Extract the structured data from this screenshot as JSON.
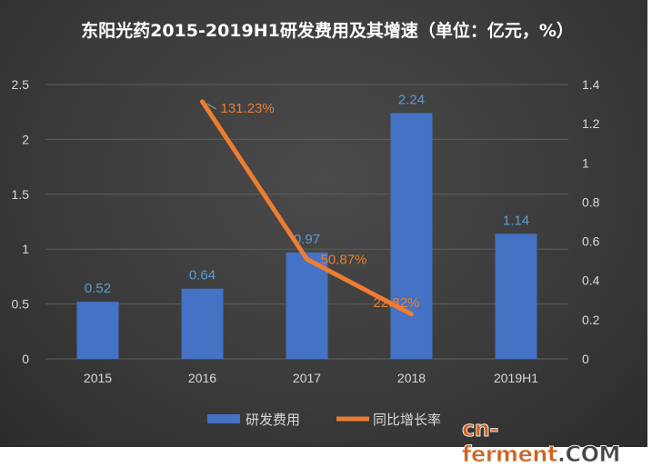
{
  "chart_data": {
    "type": "bar+line",
    "title": "东阳光药2015-2019H1研发费用及其增速（单位：亿元，%）",
    "categories": [
      "2015",
      "2016",
      "2017",
      "2018",
      "2019H1"
    ],
    "series": [
      {
        "name": "研发费用",
        "type": "bar",
        "axis": "left",
        "values": [
          0.52,
          0.64,
          0.97,
          2.24,
          1.14
        ],
        "labels": [
          "0.52",
          "0.64",
          "0.97",
          "2.24",
          "1.14"
        ],
        "color": "#4472c4"
      },
      {
        "name": "同比增长率",
        "type": "line",
        "axis": "right",
        "values": [
          null,
          1.3123,
          0.5087,
          0.2282,
          null
        ],
        "labels": [
          "",
          "131.23%",
          "50.87%",
          "22.82%",
          ""
        ],
        "color": "#ed7d31"
      }
    ],
    "left_axis": {
      "range": [
        0,
        2.5
      ],
      "ticks": [
        "0",
        "0.5",
        "1",
        "1.5",
        "2",
        "2.5"
      ]
    },
    "right_axis": {
      "range": [
        0,
        1.4
      ],
      "ticks": [
        "0",
        "0.2",
        "0.4",
        "0.6",
        "0.8",
        "1",
        "1.2",
        "1.4"
      ]
    },
    "grid": true,
    "legend_position": "bottom"
  },
  "watermark": {
    "main": "cn-ferment",
    "suffix": ".COM"
  }
}
